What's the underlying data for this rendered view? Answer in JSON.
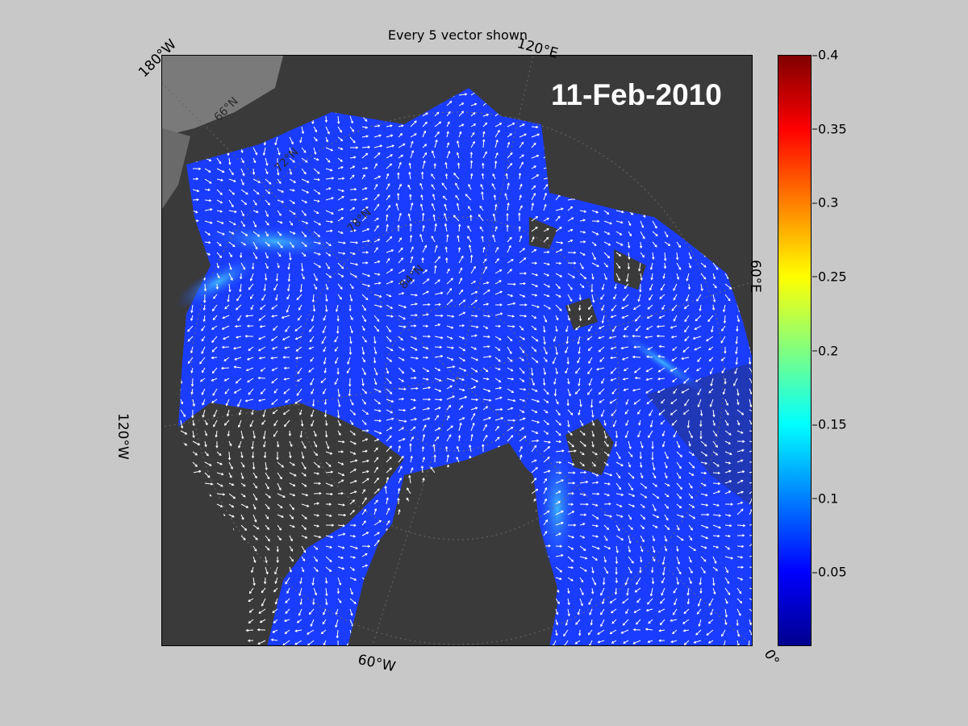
{
  "map": {
    "title": "Every 5 vector shown",
    "date": "11-Feb-2010",
    "longitude_labels": {
      "w180": "180°W",
      "e120": "120°E",
      "e60": "60°E",
      "w120": "120°W",
      "w60": "60°W",
      "zero": "0°"
    },
    "latitude_labels": [
      "66°N",
      "72°N",
      "78°N",
      "84°N"
    ],
    "colors": {
      "background": "#c8c8c8",
      "land": "#3a3a3a",
      "ice_shelf": "#808080",
      "ocean_field": "#1a3cff",
      "vectors": "#ffffff"
    }
  },
  "colorbar": {
    "min": 0,
    "max": 0.4,
    "ticks": [
      "0.05",
      "0.1",
      "0.15",
      "0.2",
      "0.25",
      "0.3",
      "0.35",
      "0.4"
    ],
    "tick_values": [
      0.05,
      0.1,
      0.15,
      0.2,
      0.25,
      0.3,
      0.35,
      0.4
    ],
    "colormap": "jet"
  }
}
